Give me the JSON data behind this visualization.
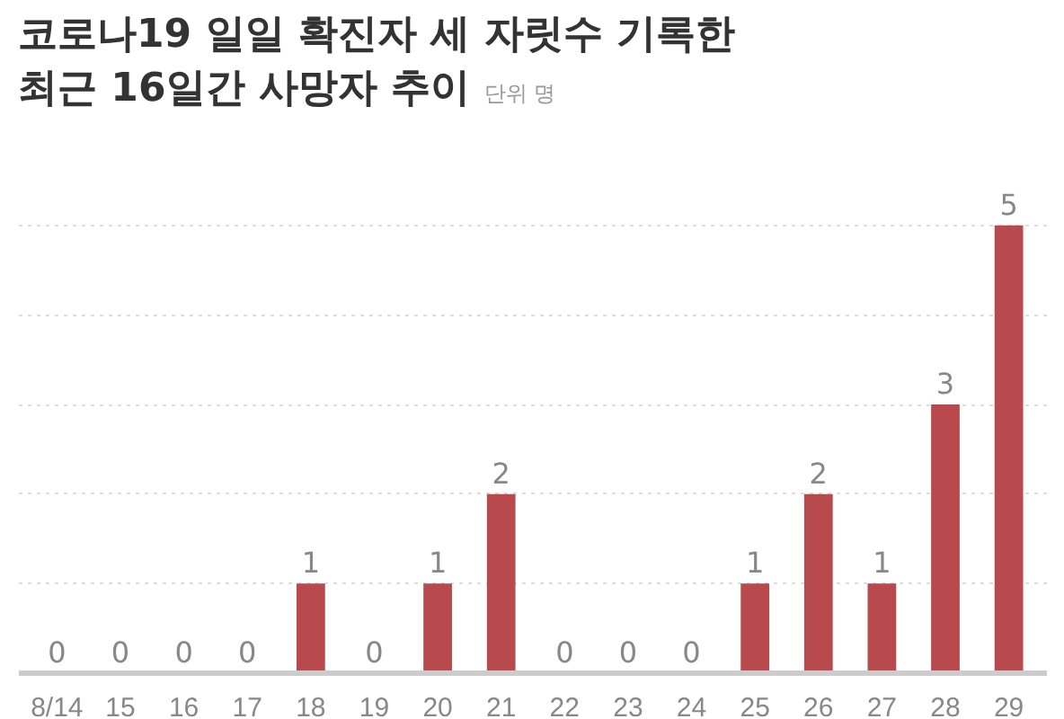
{
  "chart_data": {
    "type": "bar",
    "title": "코로나19 일일 확진자 세 자릿수 기록한\n최근 16일간 사망자 추이",
    "annotations": [
      "단위 명"
    ],
    "categories": [
      "8/14",
      "15",
      "16",
      "17",
      "18",
      "19",
      "20",
      "21",
      "22",
      "23",
      "24",
      "25",
      "26",
      "27",
      "28",
      "29"
    ],
    "values": [
      0,
      0,
      0,
      0,
      1,
      0,
      1,
      2,
      0,
      0,
      0,
      1,
      2,
      1,
      3,
      5
    ],
    "color": "#b84a4d",
    "data_labels": true,
    "yticks": [
      {
        "value": 1,
        "label": null
      },
      {
        "value": 2,
        "label": null
      },
      {
        "value": 3,
        "label": null
      },
      {
        "value": 4,
        "label": null
      },
      {
        "value": 5,
        "label": null
      }
    ],
    "grid": "y",
    "tick_labels": "x"
  }
}
